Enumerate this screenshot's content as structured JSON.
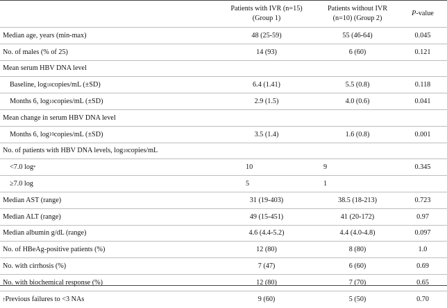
{
  "header": {
    "group1_line1": "Patients with IVR (n=15)",
    "group1_line2": "(Group 1)",
    "group2_line1": "Patients without IVR",
    "group2_line2": "(n=10) (Group 2)",
    "pvalue_italic": "P",
    "pvalue_rest": "-value"
  },
  "rows": {
    "age": {
      "label": "Median age, years (min-max)",
      "g1": "48 (25-59)",
      "g2": "55 (46-64)",
      "p": "0.045"
    },
    "males": {
      "label": "No. of males (% of 25)",
      "g1": "14 (93)",
      "g2": "6 (60)",
      "p": "0.121"
    },
    "mean_dna": {
      "label": "Mean serum HBV DNA level"
    },
    "baseline": {
      "label_a": "Baseline, log",
      "label_sub": "10",
      "label_b": "copies/mL (±SD)",
      "g1": "6.4 (1.41)",
      "g2": "5.5 (0.8)",
      "p": "0.118"
    },
    "months6": {
      "label_a": "Months 6, log",
      "label_sub": "10",
      "label_b": "copies/mL (±SD)",
      "g1": "2.9 (1.5)",
      "g2": "4.0 (0.6)",
      "p": "0.041"
    },
    "mean_change": {
      "label": "Mean change in serum HBV DNA level"
    },
    "change_m6": {
      "label_a": "Months 6, log",
      "label_sub": "10",
      "label_b": "copies/mL (±SD)",
      "g1": "3.5 (1.4)",
      "g2": "1.6 (0.8)",
      "p": "0.001"
    },
    "num_levels": {
      "label_a": "No. of patients with HBV DNA levels, log",
      "label_sub": "10",
      "label_b": "copies/mL"
    },
    "lt7": {
      "label_a": "<7.0 log",
      "label_sup": "*",
      "g1": "10",
      "g2": "9",
      "p": "0.345"
    },
    "ge7": {
      "label": "≥7.0 log",
      "g1": "5",
      "g2": "1",
      "p": ""
    },
    "ast": {
      "label": "Median AST (range)",
      "g1": "31 (19-403)",
      "g2": "38.5 (18-213)",
      "p": "0.723"
    },
    "alt": {
      "label": "Median ALT (range)",
      "g1": "49 (15-451)",
      "g2": "41 (20-172)",
      "p": "0.97"
    },
    "albumin": {
      "label": "Median albumin g/dL (range)",
      "g1": "4.6 (4.4-5.2)",
      "g2": "4.4 (4.0-4.8)",
      "p": "0.097"
    },
    "hbeag": {
      "label": "No. of HBeAg-positive patients (%)",
      "g1": "12 (80)",
      "g2": "8 (80)",
      "p": "1.0"
    },
    "cirrhosis": {
      "label": "No. with cirrhosis (%)",
      "g1": "7 (47)",
      "g2": "6 (60)",
      "p": "0.69"
    },
    "biochem": {
      "label": "No. with biochemical response (%)",
      "g1": "12 (80)",
      "g2": "7 (70)",
      "p": "0.65"
    },
    "prev": {
      "label_sup": "†",
      "label_a": "Previous failures to <3 NAs",
      "g1": "9 (60)",
      "g2": "5 (50)",
      "p": "0.70"
    }
  }
}
